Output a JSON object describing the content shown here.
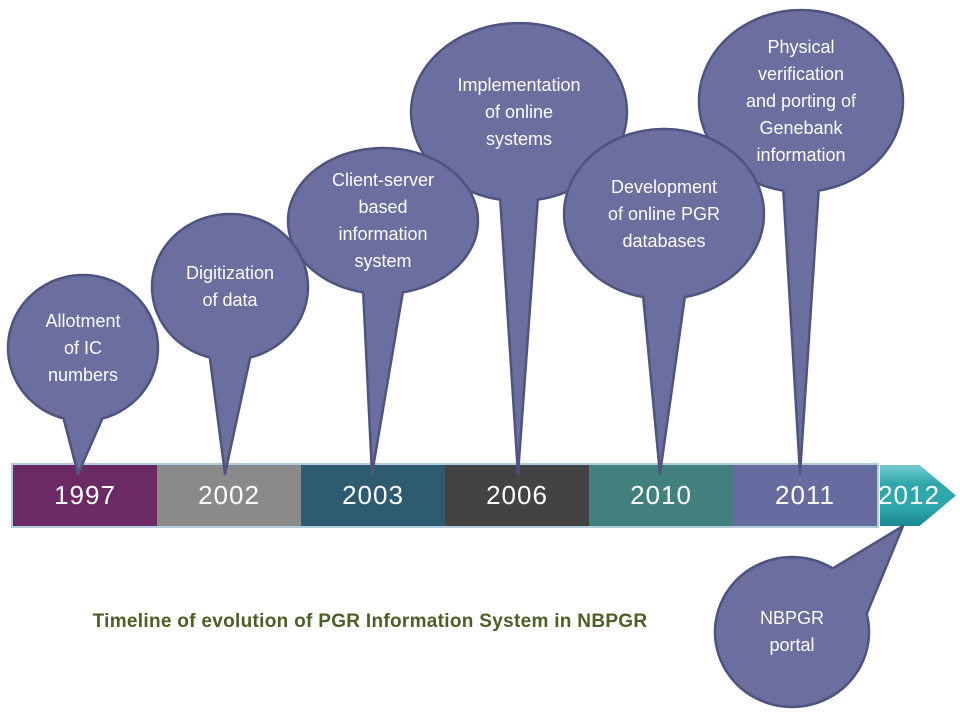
{
  "caption": {
    "text": "Timeline of evolution of PGR Information System in NBPGR",
    "color": "#4b5f26"
  },
  "balloons": [
    {
      "id": "allotment-ic-numbers",
      "text": "Allotment\nof IC\nnumbers",
      "year": "1997"
    },
    {
      "id": "digitization-of-data",
      "text": "Digitization\nof data",
      "year": "2002"
    },
    {
      "id": "client-server-system",
      "text": "Client-server\nbased\ninformation\nsystem",
      "year": "2003"
    },
    {
      "id": "online-systems",
      "text": "Implementation\nof online\nsystems",
      "year": "2006"
    },
    {
      "id": "online-pgr-databases",
      "text": "Development\nof online PGR\ndatabases",
      "year": "2010"
    },
    {
      "id": "genebank-information",
      "text": "Physical\nverification\nand porting of\nGenebank\ninformation",
      "year": "2011"
    },
    {
      "id": "nbpgr-portal",
      "text": "NBPGR\nportal",
      "year": "2012"
    }
  ],
  "timeline": {
    "segments": [
      {
        "year": "1997",
        "color": "#6b2a64"
      },
      {
        "year": "2002",
        "color": "#8a8a8a"
      },
      {
        "year": "2003",
        "color": "#2f5b70"
      },
      {
        "year": "2006",
        "color": "#434343"
      },
      {
        "year": "2010",
        "color": "#41807d"
      },
      {
        "year": "2011",
        "color": "#676ca0"
      }
    ],
    "arrow": {
      "year": "2012",
      "color": "#2ea7ac",
      "gradient_top": "#7bd0d3",
      "gradient_bottom": "#17858d"
    }
  },
  "colors": {
    "balloon_fill": "#6a6f9f",
    "balloon_border": "#4e5380",
    "balloon_text": "#fdfdff",
    "bar_border": "#b3ccda",
    "year_text": "#ffffff"
  }
}
